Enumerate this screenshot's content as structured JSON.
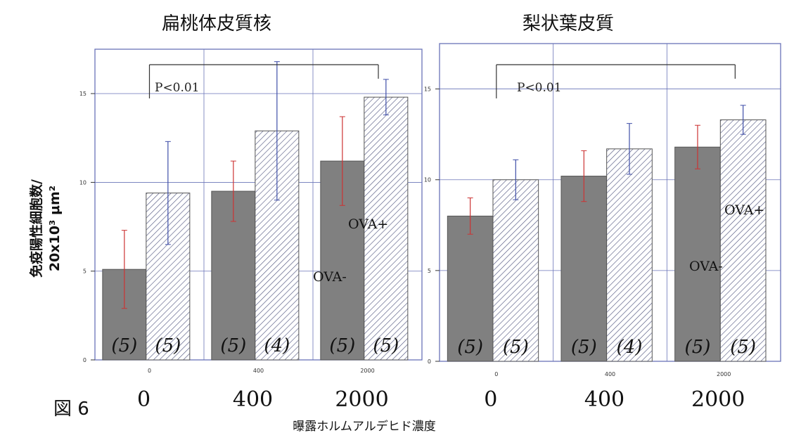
{
  "figure_label": "図 6",
  "y_axis_label_line1": "免疫陽性細胞数/",
  "y_axis_label_line2": "20x10³ μm²",
  "x_axis_label": "曝露ホルムアルデヒド濃度",
  "colors": {
    "ova_minus_fill": "#808080",
    "ova_plus_fill": "#ffffff",
    "ova_plus_hatch": "#4a4f7a",
    "ova_minus_error": "#cc3333",
    "ova_plus_error": "#3f4ea8",
    "grid": "#6a74b8"
  },
  "chart_data": [
    {
      "type": "bar",
      "title": "扁桃体皮質核",
      "categories": [
        "0",
        "400",
        "2000"
      ],
      "category_labels_large": [
        "0",
        "400",
        "2000"
      ],
      "ylim": [
        0,
        17.5
      ],
      "yticks": [
        "0",
        "5",
        "10",
        "15"
      ],
      "grid": true,
      "series": [
        {
          "name": "OVA-",
          "values": [
            5.1,
            9.5,
            11.2
          ],
          "error": [
            2.2,
            1.7,
            2.5
          ],
          "n_labels": [
            "(5)",
            "(5)",
            "(5)"
          ]
        },
        {
          "name": "OVA+",
          "values": [
            9.4,
            12.9,
            14.8
          ],
          "error": [
            2.9,
            3.9,
            1.0
          ],
          "n_labels": [
            "(5)",
            "(4)",
            "(5)"
          ]
        }
      ],
      "significance": {
        "label": "P<0.01",
        "from": "0",
        "to": "2000"
      }
    },
    {
      "type": "bar",
      "title": "梨状葉皮質",
      "categories": [
        "0",
        "400",
        "2000"
      ],
      "category_labels_large": [
        "0",
        "400",
        "2000"
      ],
      "ylim": [
        0,
        17.5
      ],
      "yticks": [
        "0",
        "5",
        "10",
        "15"
      ],
      "grid": true,
      "series": [
        {
          "name": "OVA-",
          "values": [
            8.0,
            10.2,
            11.8
          ],
          "error": [
            1.0,
            1.4,
            1.2
          ],
          "n_labels": [
            "(5)",
            "(5)",
            "(5)"
          ]
        },
        {
          "name": "OVA+",
          "values": [
            10.0,
            11.7,
            13.3
          ],
          "error": [
            1.1,
            1.4,
            0.8
          ],
          "n_labels": [
            "(5)",
            "(4)",
            "(5)"
          ]
        }
      ],
      "significance": {
        "label": "P<0.01",
        "from": "0",
        "to": "2000"
      }
    }
  ]
}
